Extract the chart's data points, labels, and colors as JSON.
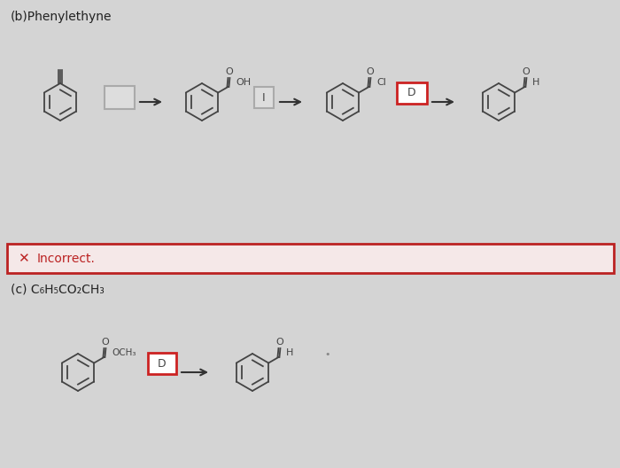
{
  "title_b": "(b)Phenylethyne",
  "title_c": "(c) C₆H₅CO₂CH₃",
  "incorrect_text": "Incorrect.",
  "bg_color": "#d4d4d4",
  "incorrect_bg": "#f5e8e8",
  "incorrect_border": "#bb2222",
  "box_gray": "#aaaaaa",
  "box_red": "#cc2222",
  "mol_color": "#444444",
  "text_color": "#222222"
}
